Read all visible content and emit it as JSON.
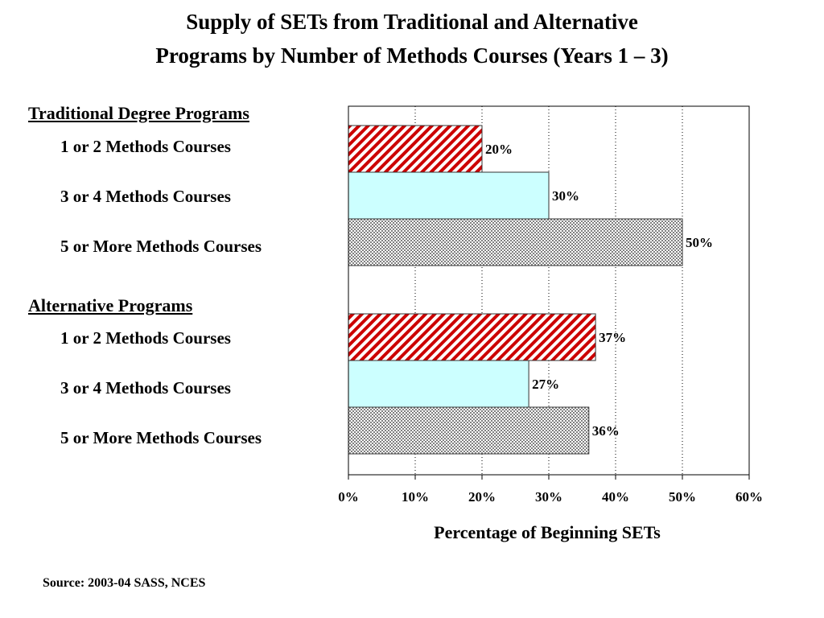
{
  "title": {
    "line1": "Supply of SETs from Traditional and Alternative",
    "line2": "Programs by Number of Methods Courses (Years 1 – 3)"
  },
  "source": "Source: 2003-04 SASS, NCES",
  "colors": {
    "one_or_two": "#cc0000",
    "three_or_four": "#ccffff",
    "five_or_more": "#808080"
  },
  "chart_data": {
    "type": "bar",
    "orientation": "horizontal",
    "title": "Supply of SETs from Traditional and Alternative Programs by Number of Methods Courses (Years 1 – 3)",
    "xlabel": "Percentage of Beginning SETs",
    "xlim": [
      0,
      60
    ],
    "x_ticks": [
      "0%",
      "10%",
      "20%",
      "30%",
      "40%",
      "50%",
      "60%"
    ],
    "grid": "vertical dotted",
    "groups": [
      {
        "name": "Traditional Degree Programs",
        "categories": [
          "1 or 2 Methods Courses",
          "3 or 4 Methods Courses",
          "5 or More Methods Courses"
        ],
        "values": [
          20,
          30,
          50
        ],
        "labels": [
          "20%",
          "30%",
          "50%"
        ]
      },
      {
        "name": "Alternative  Programs",
        "categories": [
          "1 or 2 Methods Courses",
          "3 or 4 Methods Courses",
          "5 or More Methods Courses"
        ],
        "values": [
          37,
          27,
          36
        ],
        "labels": [
          "37%",
          "27%",
          "36%"
        ]
      }
    ]
  }
}
